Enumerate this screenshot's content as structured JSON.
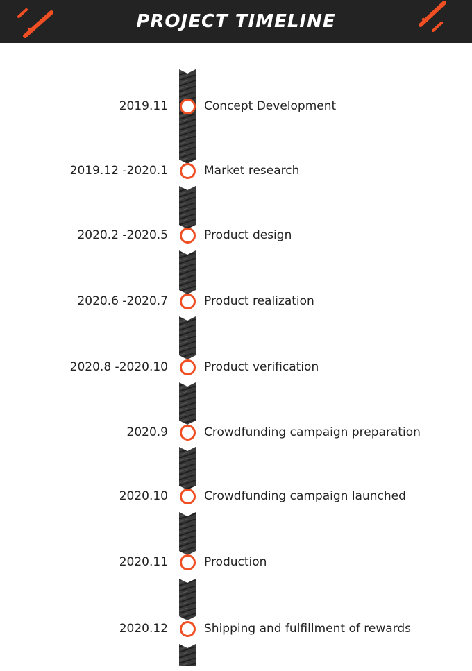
{
  "header": {
    "title": "PROJECT TIMELINE",
    "accent_color": "#f04e23",
    "background_color": "#232323"
  },
  "timeline": {
    "node_color": "#f04e23",
    "items": [
      {
        "date": "2019.11",
        "label": "Concept Development"
      },
      {
        "date": "2019.12 -2020.1",
        "label": "Market research"
      },
      {
        "date": "2020.2 -2020.5",
        "label": "Product design"
      },
      {
        "date": "2020.6 -2020.7",
        "label": "Product realization"
      },
      {
        "date": "2020.8 -2020.10",
        "label": "Product verification"
      },
      {
        "date": "2020.9",
        "label": "Crowdfunding campaign preparation"
      },
      {
        "date": "2020.10",
        "label": "Crowdfunding campaign launched"
      },
      {
        "date": "2020.11",
        "label": "Production"
      },
      {
        "date": "2020.12",
        "label": "Shipping and fulfillment of rewards"
      }
    ]
  }
}
